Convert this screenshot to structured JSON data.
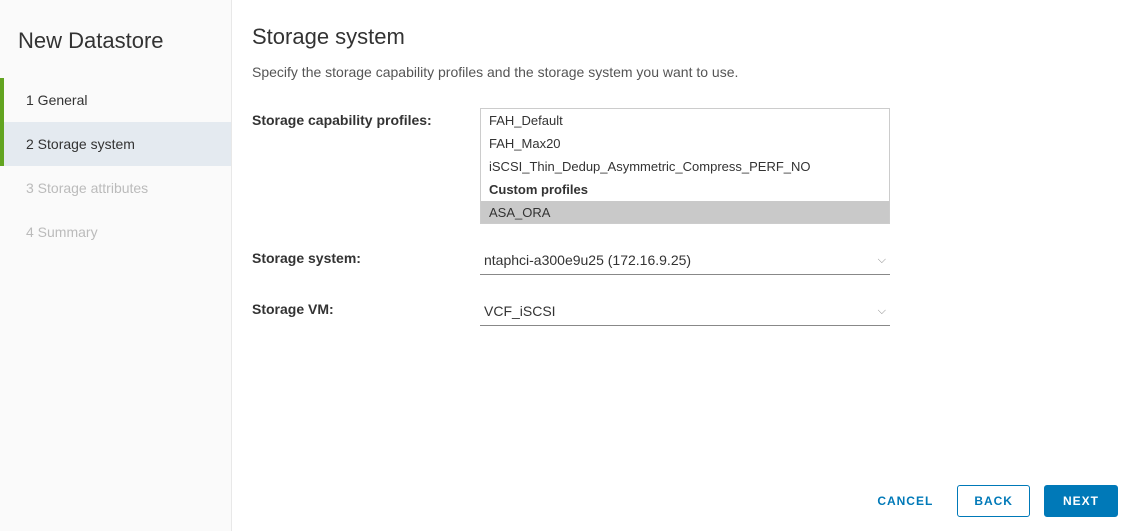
{
  "wizard": {
    "title": "New Datastore",
    "steps": [
      {
        "label": "1 General",
        "state": "completed"
      },
      {
        "label": "2 Storage system",
        "state": "active"
      },
      {
        "label": "3 Storage attributes",
        "state": "pending"
      },
      {
        "label": "4 Summary",
        "state": "pending"
      }
    ]
  },
  "page": {
    "title": "Storage system",
    "description": "Specify the storage capability profiles and the storage system you want to use."
  },
  "form": {
    "profiles_label": "Storage capability profiles:",
    "profiles": {
      "items": [
        {
          "label": "FAH_Default",
          "selected": false
        },
        {
          "label": "FAH_Max20",
          "selected": false
        },
        {
          "label": "iSCSI_Thin_Dedup_Asymmetric_Compress_PERF_NO",
          "selected": false
        }
      ],
      "custom_group_label": "Custom profiles",
      "custom_items": [
        {
          "label": "ASA_ORA",
          "selected": true
        }
      ]
    },
    "system_label": "Storage system:",
    "system_value": "ntaphci-a300e9u25 (172.16.9.25)",
    "svm_label": "Storage VM:",
    "svm_value": "VCF_iSCSI"
  },
  "footer": {
    "cancel": "CANCEL",
    "back": "BACK",
    "next": "NEXT"
  }
}
